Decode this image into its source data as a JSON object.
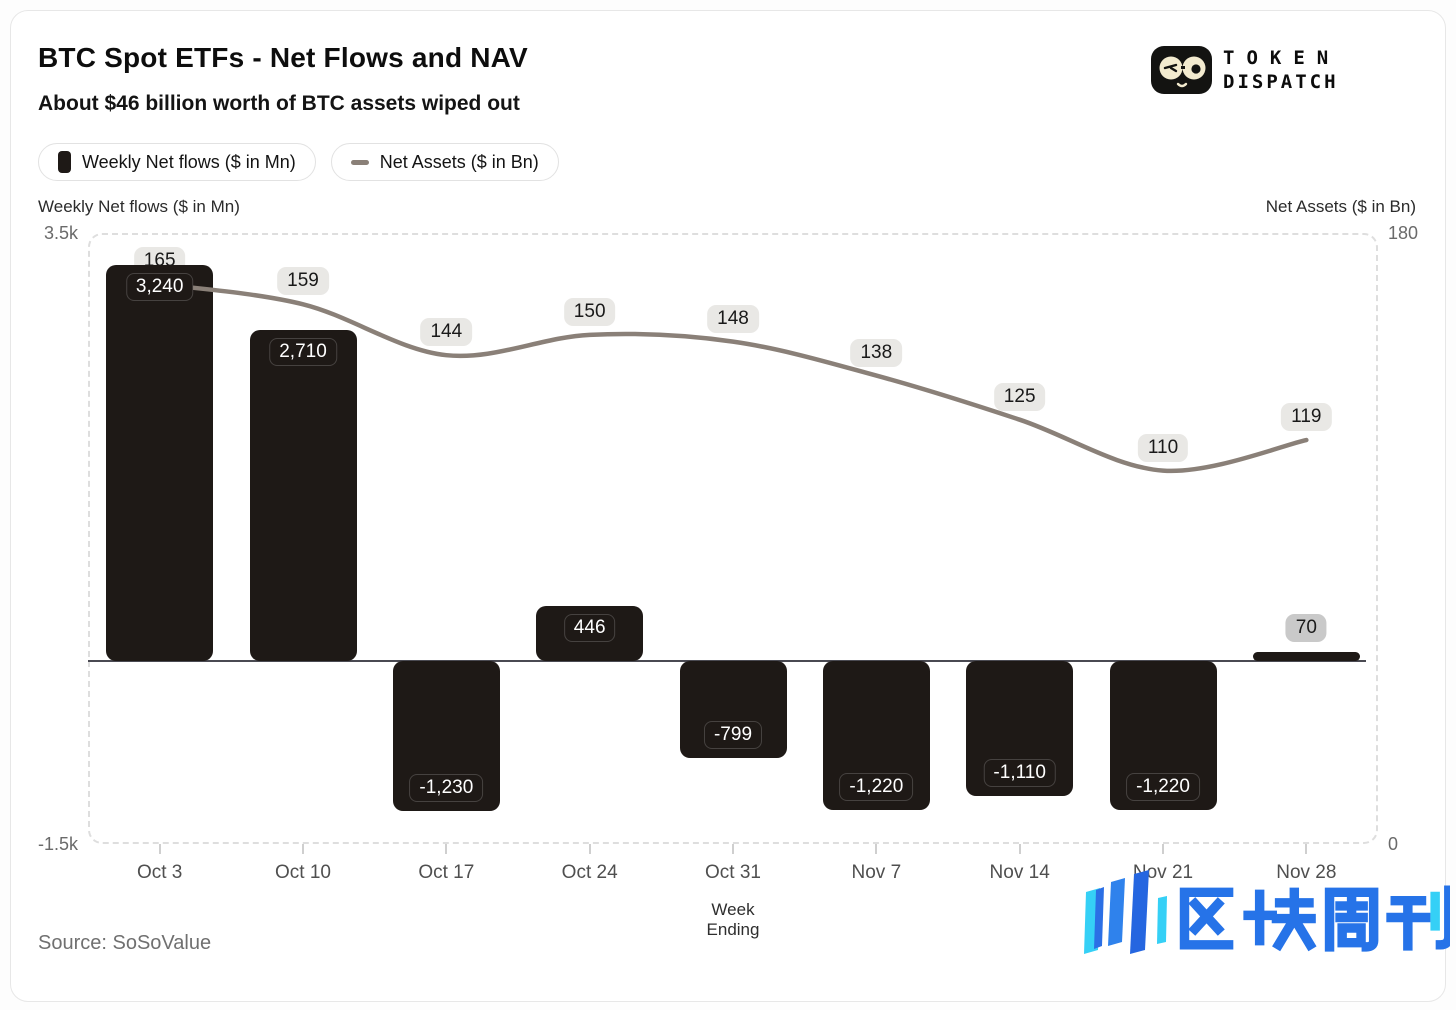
{
  "header": {
    "title": "BTC Spot ETFs - Net Flows and NAV",
    "subtitle": "About $46 billion worth of BTC assets wiped out",
    "brand_line1": "TOKEN",
    "brand_line2": "DISPATCH"
  },
  "legend": {
    "items": [
      {
        "label": "Weekly Net flows ($ in Mn)",
        "icon": "bar-swatch-icon"
      },
      {
        "label": "Net Assets ($ in Bn)",
        "icon": "line-swatch-icon"
      }
    ]
  },
  "chart_data": {
    "type": "bar",
    "subtype": "combo-bar-line",
    "title": "BTC Spot ETFs - Net Flows and NAV",
    "categories": [
      "Oct 3",
      "Oct 10",
      "Oct 17",
      "Oct 24",
      "Oct 31",
      "Nov 7",
      "Nov 14",
      "Nov 21",
      "Nov 28"
    ],
    "series": [
      {
        "name": "Weekly Net flows ($ in Mn)",
        "type": "bar",
        "axis": "left",
        "values": [
          3240,
          2710,
          -1230,
          446,
          -799,
          -1220,
          -1110,
          -1220,
          70
        ],
        "labels": [
          "3,240",
          "2,710",
          "-1,230",
          "446",
          "-799",
          "-1,220",
          "-1,110",
          "-1,220",
          "70"
        ]
      },
      {
        "name": "Net Assets ($ in Bn)",
        "type": "line",
        "axis": "right",
        "values": [
          165,
          159,
          144,
          150,
          148,
          138,
          125,
          110,
          119
        ],
        "labels": [
          "165",
          "159",
          "144",
          "150",
          "148",
          "138",
          "125",
          "110",
          "119"
        ]
      }
    ],
    "left_axis": {
      "title": "Weekly Net flows ($ in Mn)",
      "min": -1500,
      "max": 3500,
      "tick_labels": [
        "3.5k",
        "-1.5k"
      ]
    },
    "right_axis": {
      "title": "Net Assets ($ in Bn)",
      "min": 0,
      "max": 180,
      "tick_labels": [
        "180",
        "0"
      ]
    },
    "xlabel": "Week Ending",
    "grid": false,
    "legend_position": "top-left"
  },
  "footer": {
    "source": "Source: SoSoValue",
    "watermark": "区块周刊"
  },
  "colors": {
    "bar": "#1e1916",
    "line": "#8a8078",
    "line_pill_bg": "#e9e8e5",
    "outside_label_bg": "#c9c9c9",
    "zero_line": "#4a4a52",
    "watermark_blue": "#2673e8",
    "watermark_cyan": "#35d0f6"
  }
}
